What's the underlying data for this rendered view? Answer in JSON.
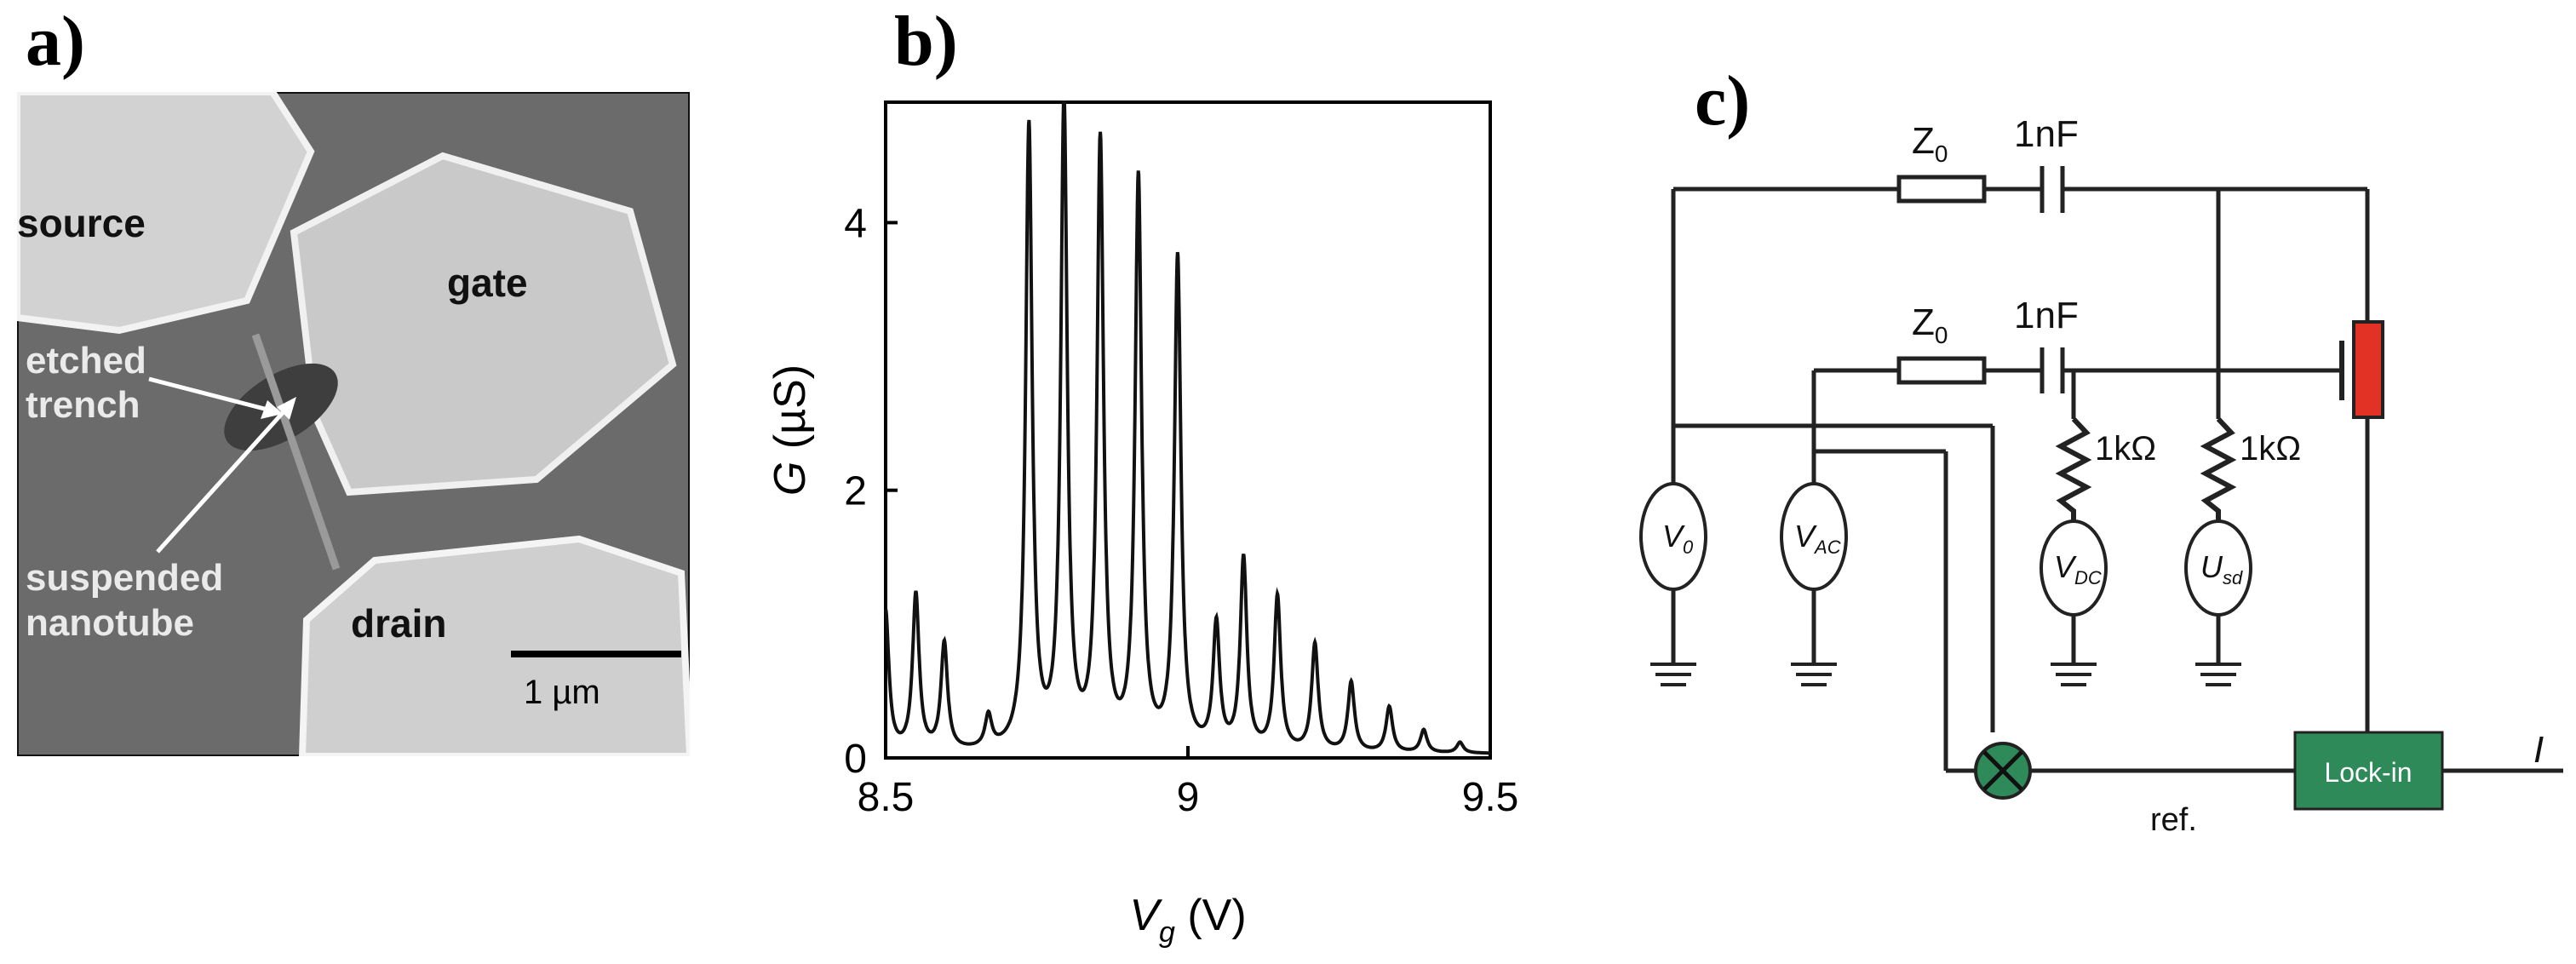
{
  "panel_a": {
    "label": "a)",
    "sem_labels": {
      "source": "source",
      "gate": "gate",
      "drain": "drain",
      "etched_trench": [
        "etched",
        "trench"
      ],
      "suspended_nanotube": [
        "suspended",
        "nanotube"
      ]
    },
    "scale_bar": "1 µm"
  },
  "panel_b": {
    "label": "b)"
  },
  "chart_data": {
    "type": "line",
    "title": "",
    "xlabel": "V_g (V)",
    "ylabel": "G (µS)",
    "xlabel_parts": {
      "var": "V",
      "sub": "g",
      "unit": " (V)"
    },
    "ylabel_parts": {
      "var": "G",
      "unit": " (µS)"
    },
    "xlim": [
      8.5,
      9.5
    ],
    "ylim": [
      0,
      4.9
    ],
    "x_ticks": [
      8.5,
      9,
      9.5
    ],
    "x_tick_labels": [
      "8.5",
      "9",
      "9.5"
    ],
    "y_ticks": [
      0,
      2,
      4
    ],
    "y_tick_labels": [
      "0",
      "2",
      "4"
    ],
    "grid": false,
    "baseline": 0.03,
    "peak_width": 0.0065,
    "peaks": [
      {
        "x": 8.5,
        "y": 1.05
      },
      {
        "x": 8.55,
        "y": 1.17
      },
      {
        "x": 8.597,
        "y": 0.8
      },
      {
        "x": 8.67,
        "y": 0.24
      },
      {
        "x": 8.737,
        "y": 4.65
      },
      {
        "x": 8.795,
        "y": 4.8
      },
      {
        "x": 8.855,
        "y": 4.52
      },
      {
        "x": 8.918,
        "y": 4.25
      },
      {
        "x": 8.983,
        "y": 3.67
      },
      {
        "x": 9.047,
        "y": 0.93
      },
      {
        "x": 9.092,
        "y": 1.43
      },
      {
        "x": 9.148,
        "y": 1.15
      },
      {
        "x": 9.21,
        "y": 0.8
      },
      {
        "x": 9.27,
        "y": 0.52
      },
      {
        "x": 9.333,
        "y": 0.34
      },
      {
        "x": 9.39,
        "y": 0.17
      },
      {
        "x": 9.45,
        "y": 0.08
      }
    ]
  },
  "panel_c": {
    "label": "c)",
    "z0_top": {
      "main": "Z",
      "sub": "0"
    },
    "cap_top": "1nF",
    "z0_mid": {
      "main": "Z",
      "sub": "0"
    },
    "cap_mid": "1nF",
    "res_left": "1kΩ",
    "res_right": "1kΩ",
    "sources": [
      {
        "main": "V",
        "sub": "0"
      },
      {
        "main": "V",
        "sub": "AC"
      },
      {
        "main": "V",
        "sub": "DC"
      },
      {
        "main": "U",
        "sub": "sd"
      }
    ],
    "lockin": "Lock-in",
    "ref": "ref.",
    "output": "I",
    "colors": {
      "device": "#e23226",
      "lockin": "#2f8a5a",
      "mixer": "#2f8a5a"
    }
  }
}
